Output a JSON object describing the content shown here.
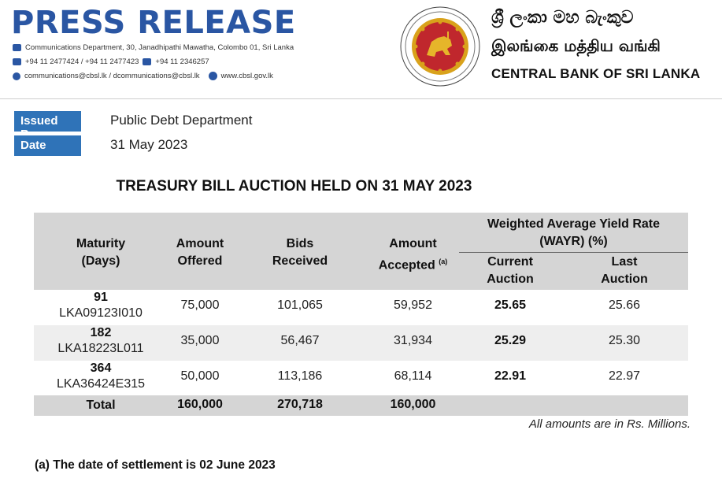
{
  "header": {
    "title": "PRESS RELEASE",
    "address": "Communications Department, 30, Janadhipathi Mawatha, Colombo 01, Sri Lanka",
    "phones": "+94 11 2477424 / +94 11 2477423",
    "fax": "+94 11  2346257",
    "emails": "communications@cbsl.lk / dcommunications@cbsl.lk",
    "website": "www.cbsl.gov.lk",
    "bank_name_sinhala": "ශ්‍රී ලංකා මහ බැංකුව",
    "bank_name_tamil": "இலங்கை மத்திய வங்கி",
    "bank_name_english": "CENTRAL BANK OF SRI LANKA"
  },
  "meta": {
    "issued_by_label": "Issued By",
    "issued_by_value": "Public Debt Department",
    "date_label": "Date",
    "date_value": "31 May 2023"
  },
  "table": {
    "title": "TREASURY BILL AUCTION HELD ON 31 MAY 2023",
    "headers": {
      "maturity_line1": "Maturity",
      "maturity_line2": "(Days)",
      "offered_line1": "Amount",
      "offered_line2": "Offered",
      "bids_line1": "Bids",
      "bids_line2": "Received",
      "accepted_line1": "Amount",
      "accepted_line2": "Accepted",
      "accepted_note": "(a)",
      "wayr_line1": "Weighted Average Yield Rate",
      "wayr_line2": "(WAYR) (%)",
      "current_line1": "Current",
      "current_line2": "Auction",
      "last_line1": "Last",
      "last_line2": "Auction"
    },
    "rows": [
      {
        "days": "91",
        "code": "LKA09123I010",
        "offered": "75,000",
        "bids": "101,065",
        "accepted": "59,952",
        "current": "25.65",
        "last": "25.66"
      },
      {
        "days": "182",
        "code": "LKA18223L011",
        "offered": "35,000",
        "bids": "56,467",
        "accepted": "31,934",
        "current": "25.29",
        "last": "25.30"
      },
      {
        "days": "364",
        "code": "LKA36424E315",
        "offered": "50,000",
        "bids": "113,186",
        "accepted": "68,114",
        "current": "22.91",
        "last": "22.97"
      }
    ],
    "total": {
      "label": "Total",
      "offered": "160,000",
      "bids": "270,718",
      "accepted": "160,000"
    },
    "amounts_note": "All amounts are in Rs. Millions."
  },
  "footnote": "(a) The date of settlement is 02 June 2023",
  "colors": {
    "brand_blue": "#2a56a3",
    "label_blue": "#2f73b8",
    "seal_red": "#c0272d",
    "seal_gold": "#d9a21b"
  }
}
